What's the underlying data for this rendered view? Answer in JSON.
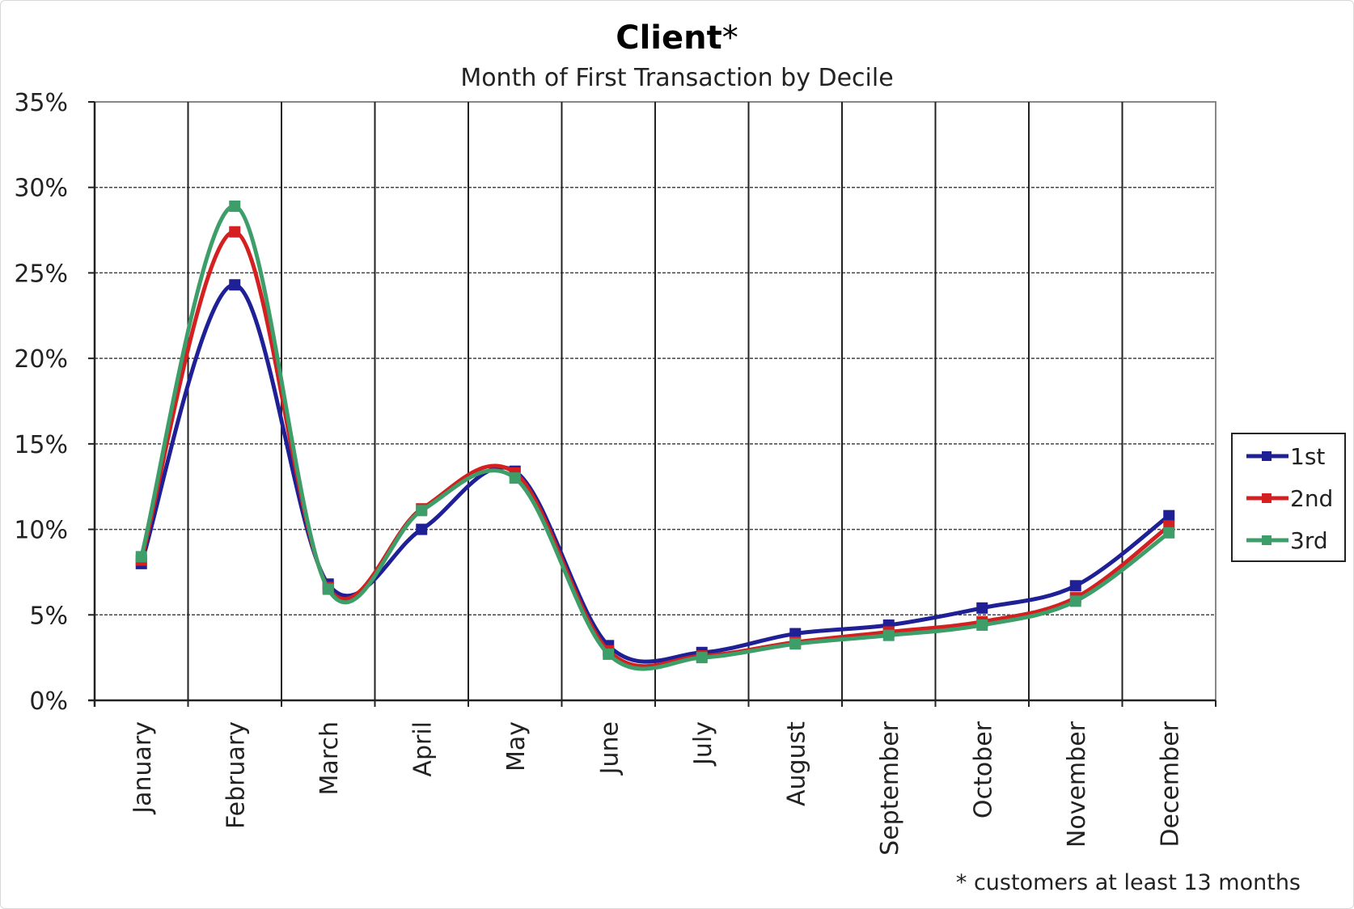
{
  "chart_data": {
    "type": "line",
    "title": "Client",
    "title_suffix": "*",
    "subtitle": "Month of First Transaction by Decile",
    "footnote": "* customers at least 13 months",
    "categories": [
      "January",
      "February",
      "March",
      "April",
      "May",
      "June",
      "July",
      "August",
      "September",
      "October",
      "November",
      "December"
    ],
    "ylim": [
      0,
      0.35
    ],
    "yticks": [
      0,
      0.05,
      0.1,
      0.15,
      0.2,
      0.25,
      0.3,
      0.35
    ],
    "ytick_labels": [
      "0%",
      "5%",
      "10%",
      "15%",
      "20%",
      "25%",
      "30%",
      "35%"
    ],
    "grid": true,
    "smooth": true,
    "legend_position": "right",
    "series": [
      {
        "name": "1st",
        "color": "#1f1f96",
        "values": [
          0.08,
          0.243,
          0.068,
          0.1,
          0.134,
          0.032,
          0.028,
          0.039,
          0.044,
          0.054,
          0.067,
          0.108
        ]
      },
      {
        "name": "2nd",
        "color": "#d42020",
        "values": [
          0.082,
          0.274,
          0.066,
          0.112,
          0.133,
          0.029,
          0.026,
          0.034,
          0.04,
          0.046,
          0.06,
          0.102
        ]
      },
      {
        "name": "3rd",
        "color": "#3d9e6a",
        "values": [
          0.084,
          0.289,
          0.065,
          0.111,
          0.13,
          0.027,
          0.025,
          0.033,
          0.038,
          0.044,
          0.058,
          0.098
        ]
      }
    ]
  }
}
